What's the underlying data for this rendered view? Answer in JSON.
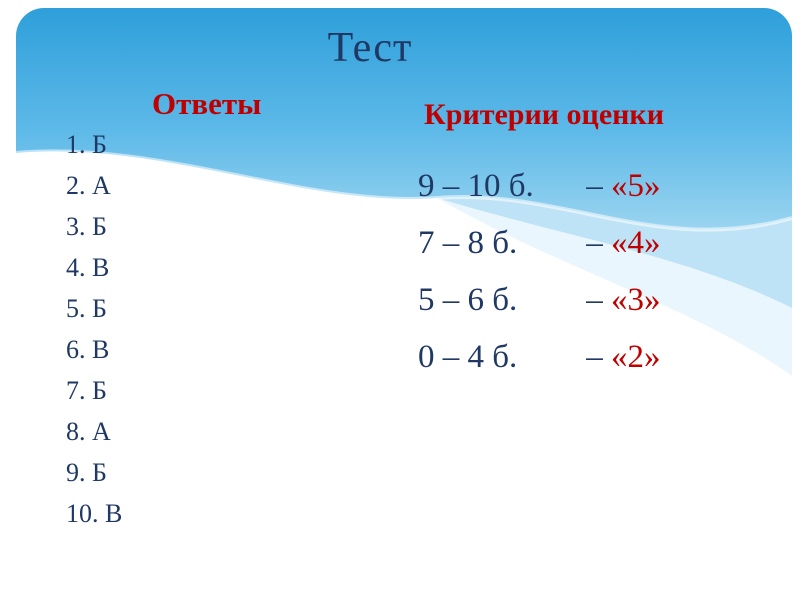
{
  "slide": {
    "title": "Тест",
    "answers": {
      "heading": "Ответы",
      "items": [
        "1. Б",
        "2. А",
        "3. Б",
        "4. В",
        "5. Б",
        "6. В",
        "7. Б",
        "8. А",
        "9. Б",
        "10. В"
      ]
    },
    "criteria": {
      "heading": "Критерии оценки",
      "separator": "–",
      "items": [
        {
          "range": "9 – 10 б.",
          "grade": "«5»"
        },
        {
          "range": "7 – 8 б.",
          "grade": "«4»"
        },
        {
          "range": "5 – 6 б.",
          "grade": "«3»"
        },
        {
          "range": "0 – 4 б.",
          "grade": "«2»"
        }
      ]
    },
    "colors": {
      "heading_red": "#C00000",
      "text_blue": "#1F3864",
      "sky_top": "#2E9FDA",
      "sky_bottom": "#9AD4F0",
      "wave_band_1": "#AEDCF4",
      "wave_band_2": "#D7EFFB"
    }
  }
}
